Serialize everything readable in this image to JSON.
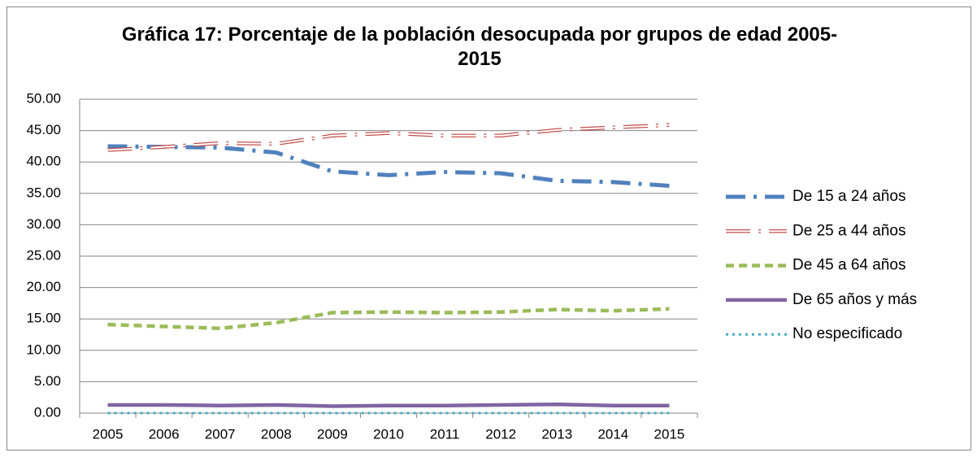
{
  "chart_data": {
    "type": "line",
    "title": "Gráfica 17: Porcentaje de la población desocupada por grupos de edad 2005-2015",
    "categories": [
      "2005",
      "2006",
      "2007",
      "2008",
      "2009",
      "2010",
      "2011",
      "2012",
      "2013",
      "2014",
      "2015"
    ],
    "series": [
      {
        "name": "De 15 a 24 años",
        "color": "#4f81bd",
        "style": "long-dash-dot",
        "values": [
          42.5,
          42.4,
          42.3,
          41.5,
          38.5,
          37.9,
          38.4,
          38.2,
          37.0,
          36.8,
          36.2
        ]
      },
      {
        "name": "De 25 a 44 años",
        "color": "#c0504d",
        "style": "double-dash-dot",
        "values": [
          41.9,
          42.4,
          43.0,
          42.9,
          44.2,
          44.6,
          44.2,
          44.2,
          45.1,
          45.5,
          45.9
        ]
      },
      {
        "name": "De 45 a 64 años",
        "color": "#9bbb59",
        "style": "dash",
        "values": [
          14.1,
          13.8,
          13.5,
          14.4,
          16.0,
          16.1,
          16.0,
          16.1,
          16.5,
          16.3,
          16.6
        ]
      },
      {
        "name": "De 65 años y más",
        "color": "#8064a2",
        "style": "solid",
        "values": [
          1.3,
          1.3,
          1.2,
          1.3,
          1.1,
          1.2,
          1.2,
          1.3,
          1.4,
          1.2,
          1.2
        ]
      },
      {
        "name": "No especificado",
        "color": "#4bacc6",
        "style": "dot",
        "values": [
          0,
          0,
          0,
          0,
          0,
          0,
          0,
          0,
          0,
          0,
          0
        ]
      }
    ],
    "ylim": [
      0,
      50
    ],
    "yticks": [
      {
        "value": 0,
        "label": "0.00"
      },
      {
        "value": 5,
        "label": "5.00"
      },
      {
        "value": 10,
        "label": "10.00"
      },
      {
        "value": 15,
        "label": "15.00"
      },
      {
        "value": 20,
        "label": "20.00"
      },
      {
        "value": 25,
        "label": "25.00"
      },
      {
        "value": 30,
        "label": "30.00"
      },
      {
        "value": 35,
        "label": "35.00"
      },
      {
        "value": 40,
        "label": "40.00"
      },
      {
        "value": 45,
        "label": "45.00"
      },
      {
        "value": 50,
        "label": "50.00"
      }
    ],
    "grid": true,
    "legend": "right"
  }
}
